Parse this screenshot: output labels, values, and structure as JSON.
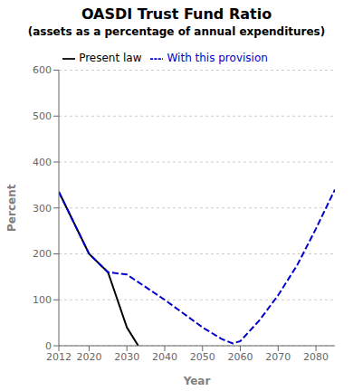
{
  "chart_data": {
    "type": "line",
    "title": "OASDI Trust Fund Ratio",
    "subtitle": "(assets as a percentage of annual expenditures)",
    "x_label": "Year",
    "y_label": "Percent",
    "xlim": [
      2012,
      2085
    ],
    "xticks": [
      2012,
      2020,
      2030,
      2040,
      2050,
      2060,
      2070,
      2080
    ],
    "ylim": [
      0,
      600
    ],
    "yticks": [
      0,
      100,
      200,
      300,
      400,
      500,
      600
    ],
    "grid": true,
    "legend": "top",
    "series": [
      {
        "name": "Present law",
        "color": "#000000",
        "line_style": "solid",
        "x": [
          2012,
          2020,
          2025,
          2030,
          2033
        ],
        "values": [
          335,
          200,
          160,
          40,
          0
        ]
      },
      {
        "name": "With this provision",
        "color": "#0000cc",
        "line_style": "dashed",
        "x": [
          2012,
          2020,
          2025,
          2030,
          2040,
          2050,
          2055,
          2058,
          2060,
          2065,
          2070,
          2075,
          2080,
          2085
        ],
        "values": [
          335,
          200,
          160,
          155,
          100,
          40,
          15,
          5,
          10,
          55,
          110,
          175,
          255,
          340
        ]
      }
    ]
  }
}
